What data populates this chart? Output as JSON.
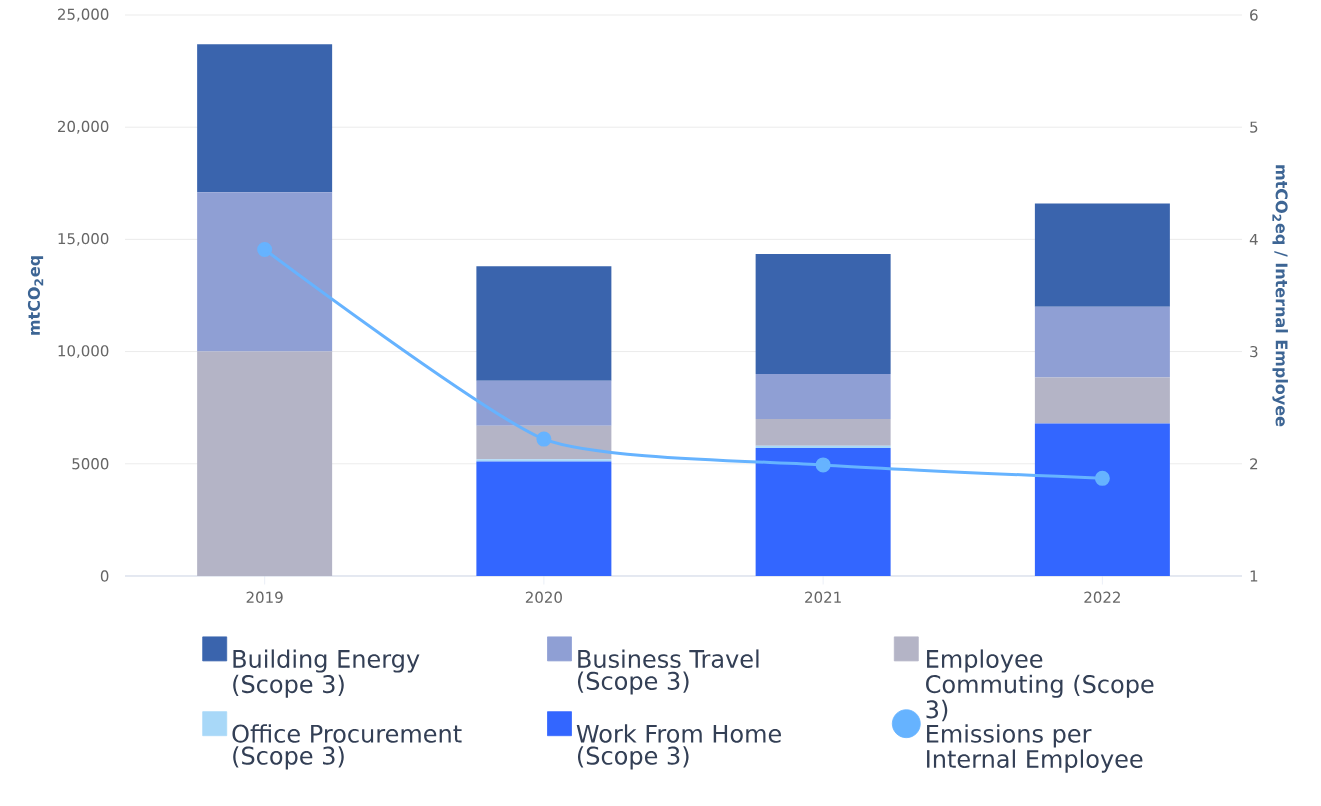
{
  "chart_data": {
    "type": "bar",
    "stacked": true,
    "categories": [
      "2019",
      "2020",
      "2021",
      "2022"
    ],
    "ylabel": "mtCO$_{2}$eq",
    "y2label": "mtCO$_{2}$eq / Internal Employee",
    "ylim": [
      0,
      25000
    ],
    "yticks": [
      0,
      5000,
      {
        "value": 10000,
        "label": "10,000"
      },
      {
        "value": 15000,
        "label": "15,000"
      },
      {
        "value": 20000,
        "label": "20,000"
      },
      {
        "value": 25000,
        "label": "25,000"
      }
    ],
    "y2lim": [
      1,
      6
    ],
    "y2ticks": [
      1,
      2,
      3,
      4,
      5,
      6
    ],
    "grid": "y",
    "legend": "bottom",
    "series": [
      {
        "name": "Work From Home (Scope 3)",
        "color": "#3366ff",
        "values": [
          0,
          5100,
          5700,
          6800
        ]
      },
      {
        "name": "Office Procurement (Scope 3)",
        "color": "#a8d8f8",
        "values": [
          0,
          100,
          100,
          0
        ]
      },
      {
        "name": "Employee Commuting (Scope 3)",
        "color": "#b4b4c6",
        "values": [
          10000,
          1500,
          1200,
          2050
        ]
      },
      {
        "name": "Business Travel (Scope 3)",
        "color": "#8f9fd4",
        "values": [
          7100,
          2000,
          2000,
          3150
        ]
      },
      {
        "name": "Building Energy (Scope 3)",
        "color": "#3a64ad",
        "values": [
          6600,
          5100,
          5350,
          4600
        ]
      },
      {
        "name": "Emissions per Internal Employee",
        "type": "line",
        "axis": "y2",
        "color": "#66b3ff",
        "marker": "circle",
        "line_style": "solid",
        "values": [
          3.91,
          2.22,
          1.99,
          1.87
        ]
      }
    ]
  }
}
